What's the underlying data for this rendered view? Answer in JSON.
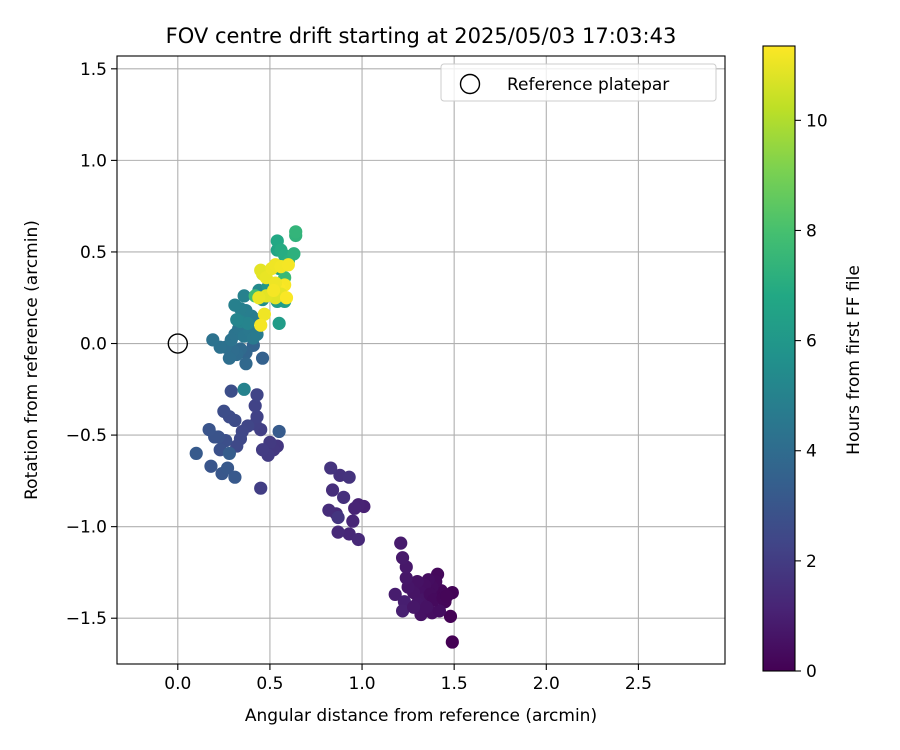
{
  "chart_data": {
    "type": "scatter",
    "title": "FOV centre drift starting at 2025/05/03 17:03:43",
    "xlabel": "Angular distance from reference (arcmin)",
    "ylabel": "Rotation from reference (arcmin)",
    "xlim": [
      -0.33,
      2.97
    ],
    "ylim": [
      -1.75,
      1.57
    ],
    "xticks": [
      0.0,
      0.5,
      1.0,
      1.5,
      2.0,
      2.5
    ],
    "xtick_labels": [
      "0.0",
      "0.5",
      "1.0",
      "1.5",
      "2.0",
      "2.5"
    ],
    "yticks": [
      -1.5,
      -1.0,
      -0.5,
      0.0,
      0.5,
      1.0,
      1.5
    ],
    "ytick_labels": [
      "−1.5",
      "−1.0",
      "−0.5",
      "0.0",
      "0.5",
      "1.0",
      "1.5"
    ],
    "grid": true,
    "legend": {
      "position": "upper right",
      "entries": [
        {
          "label": "Reference platepar",
          "marker": "open-circle",
          "x": 0.0,
          "y": 0.0
        }
      ]
    },
    "colorbar": {
      "label": "Hours from first FF file",
      "range": [
        0,
        11.35
      ],
      "ticks": [
        0,
        2,
        4,
        6,
        8,
        10
      ],
      "tick_labels": [
        "0",
        "2",
        "4",
        "6",
        "8",
        "10"
      ],
      "colormap": "viridis"
    },
    "points": [
      {
        "x": 1.49,
        "y": -1.63,
        "c": 0.0
      },
      {
        "x": 1.48,
        "y": -1.49,
        "c": 0.05
      },
      {
        "x": 1.49,
        "y": -1.36,
        "c": 0.1
      },
      {
        "x": 1.45,
        "y": -1.41,
        "c": 0.15
      },
      {
        "x": 1.43,
        "y": -1.35,
        "c": 0.2
      },
      {
        "x": 1.41,
        "y": -1.26,
        "c": 0.25
      },
      {
        "x": 1.4,
        "y": -1.3,
        "c": 0.3
      },
      {
        "x": 1.38,
        "y": -1.33,
        "c": 0.35
      },
      {
        "x": 1.36,
        "y": -1.29,
        "c": 0.4
      },
      {
        "x": 1.34,
        "y": -1.32,
        "c": 0.45
      },
      {
        "x": 1.32,
        "y": -1.36,
        "c": 0.5
      },
      {
        "x": 1.3,
        "y": -1.3,
        "c": 0.55
      },
      {
        "x": 1.28,
        "y": -1.36,
        "c": 0.6
      },
      {
        "x": 1.25,
        "y": -1.33,
        "c": 0.65
      },
      {
        "x": 1.24,
        "y": -1.28,
        "c": 0.7
      },
      {
        "x": 1.24,
        "y": -1.22,
        "c": 0.75
      },
      {
        "x": 1.22,
        "y": -1.17,
        "c": 0.8
      },
      {
        "x": 1.21,
        "y": -1.09,
        "c": 0.85
      },
      {
        "x": 1.18,
        "y": -1.37,
        "c": 0.9
      },
      {
        "x": 1.23,
        "y": -1.41,
        "c": 0.95
      },
      {
        "x": 1.22,
        "y": -1.46,
        "c": 1.0
      },
      {
        "x": 1.32,
        "y": -1.48,
        "c": 0.55
      },
      {
        "x": 1.35,
        "y": -1.41,
        "c": 0.5
      },
      {
        "x": 1.38,
        "y": -1.47,
        "c": 0.45
      },
      {
        "x": 1.42,
        "y": -1.46,
        "c": 0.4
      },
      {
        "x": 1.33,
        "y": -1.4,
        "c": 0.6
      },
      {
        "x": 1.3,
        "y": -1.42,
        "c": 0.65
      },
      {
        "x": 1.37,
        "y": -1.37,
        "c": 0.35
      },
      {
        "x": 1.39,
        "y": -1.4,
        "c": 0.3
      },
      {
        "x": 1.44,
        "y": -1.39,
        "c": 0.2
      },
      {
        "x": 1.46,
        "y": -1.38,
        "c": 0.15
      },
      {
        "x": 1.35,
        "y": -1.44,
        "c": 0.55
      },
      {
        "x": 1.28,
        "y": -1.44,
        "c": 0.7
      },
      {
        "x": 1.01,
        "y": -0.89,
        "c": 1.05
      },
      {
        "x": 0.98,
        "y": -0.88,
        "c": 1.1
      },
      {
        "x": 0.96,
        "y": -0.9,
        "c": 1.15
      },
      {
        "x": 0.95,
        "y": -0.97,
        "c": 1.2
      },
      {
        "x": 0.93,
        "y": -1.04,
        "c": 1.25
      },
      {
        "x": 0.98,
        "y": -1.07,
        "c": 1.3
      },
      {
        "x": 0.87,
        "y": -1.03,
        "c": 1.35
      },
      {
        "x": 0.86,
        "y": -0.93,
        "c": 1.4
      },
      {
        "x": 0.82,
        "y": -0.91,
        "c": 1.45
      },
      {
        "x": 0.84,
        "y": -0.8,
        "c": 1.5
      },
      {
        "x": 0.9,
        "y": -0.84,
        "c": 1.55
      },
      {
        "x": 0.88,
        "y": -0.72,
        "c": 1.6
      },
      {
        "x": 0.93,
        "y": -0.73,
        "c": 1.65
      },
      {
        "x": 0.83,
        "y": -0.68,
        "c": 1.7
      },
      {
        "x": 0.87,
        "y": -0.95,
        "c": 1.75
      },
      {
        "x": 0.54,
        "y": -0.56,
        "c": 1.8
      },
      {
        "x": 0.52,
        "y": -0.58,
        "c": 1.85
      },
      {
        "x": 0.5,
        "y": -0.54,
        "c": 1.9
      },
      {
        "x": 0.49,
        "y": -0.61,
        "c": 1.95
      },
      {
        "x": 0.46,
        "y": -0.58,
        "c": 2.0
      },
      {
        "x": 0.45,
        "y": -0.79,
        "c": 2.05
      },
      {
        "x": 0.45,
        "y": -0.47,
        "c": 2.1
      },
      {
        "x": 0.42,
        "y": -0.44,
        "c": 2.15
      },
      {
        "x": 0.43,
        "y": -0.4,
        "c": 2.2
      },
      {
        "x": 0.42,
        "y": -0.34,
        "c": 2.25
      },
      {
        "x": 0.43,
        "y": -0.28,
        "c": 2.3
      },
      {
        "x": 0.38,
        "y": -0.45,
        "c": 2.35
      },
      {
        "x": 0.35,
        "y": -0.48,
        "c": 2.4
      },
      {
        "x": 0.34,
        "y": -0.52,
        "c": 2.45
      },
      {
        "x": 0.32,
        "y": -0.56,
        "c": 2.5
      },
      {
        "x": 0.31,
        "y": -0.42,
        "c": 2.55
      },
      {
        "x": 0.28,
        "y": -0.4,
        "c": 2.6
      },
      {
        "x": 0.25,
        "y": -0.37,
        "c": 2.65
      },
      {
        "x": 0.29,
        "y": -0.26,
        "c": 2.7
      },
      {
        "x": 0.26,
        "y": -0.53,
        "c": 2.75
      },
      {
        "x": 0.23,
        "y": -0.58,
        "c": 2.8
      },
      {
        "x": 0.22,
        "y": -0.51,
        "c": 2.85
      },
      {
        "x": 0.2,
        "y": -0.51,
        "c": 2.9
      },
      {
        "x": 0.17,
        "y": -0.47,
        "c": 2.95
      },
      {
        "x": 0.18,
        "y": -0.67,
        "c": 3.0
      },
      {
        "x": 0.24,
        "y": -0.71,
        "c": 3.05
      },
      {
        "x": 0.27,
        "y": -0.68,
        "c": 3.1
      },
      {
        "x": 0.31,
        "y": -0.73,
        "c": 3.15
      },
      {
        "x": 0.1,
        "y": -0.6,
        "c": 3.2
      },
      {
        "x": 0.55,
        "y": -0.48,
        "c": 3.25
      },
      {
        "x": 0.28,
        "y": -0.6,
        "c": 3.3
      },
      {
        "x": 0.46,
        "y": -0.08,
        "c": 3.5
      },
      {
        "x": 0.41,
        "y": -0.01,
        "c": 3.6
      },
      {
        "x": 0.37,
        "y": -0.05,
        "c": 3.7
      },
      {
        "x": 0.37,
        "y": -0.11,
        "c": 3.8
      },
      {
        "x": 0.34,
        "y": -0.03,
        "c": 3.9
      },
      {
        "x": 0.32,
        "y": -0.06,
        "c": 4.0
      },
      {
        "x": 0.3,
        "y": -0.04,
        "c": 4.05
      },
      {
        "x": 0.28,
        "y": -0.08,
        "c": 4.1
      },
      {
        "x": 0.26,
        "y": -0.02,
        "c": 4.15
      },
      {
        "x": 0.23,
        "y": -0.02,
        "c": 4.2
      },
      {
        "x": 0.19,
        "y": 0.02,
        "c": 4.25
      },
      {
        "x": 0.29,
        "y": 0.02,
        "c": 4.3
      },
      {
        "x": 0.31,
        "y": 0.05,
        "c": 4.35
      },
      {
        "x": 0.33,
        "y": 0.08,
        "c": 4.4
      },
      {
        "x": 0.35,
        "y": 0.1,
        "c": 4.45
      },
      {
        "x": 0.36,
        "y": 0.04,
        "c": 4.5
      },
      {
        "x": 0.39,
        "y": 0.07,
        "c": 4.55
      },
      {
        "x": 0.41,
        "y": 0.03,
        "c": 4.6
      },
      {
        "x": 0.43,
        "y": 0.05,
        "c": 4.65
      },
      {
        "x": 0.44,
        "y": 0.13,
        "c": 4.7
      },
      {
        "x": 0.4,
        "y": 0.15,
        "c": 4.75
      },
      {
        "x": 0.37,
        "y": 0.18,
        "c": 4.8
      },
      {
        "x": 0.34,
        "y": 0.19,
        "c": 4.85
      },
      {
        "x": 0.31,
        "y": 0.21,
        "c": 4.9
      },
      {
        "x": 0.36,
        "y": 0.26,
        "c": 4.95
      },
      {
        "x": 0.36,
        "y": -0.25,
        "c": 5.0
      },
      {
        "x": 0.34,
        "y": 0.12,
        "c": 5.05
      },
      {
        "x": 0.38,
        "y": 0.11,
        "c": 5.1
      },
      {
        "x": 0.32,
        "y": 0.13,
        "c": 5.15
      },
      {
        "x": 0.44,
        "y": 0.29,
        "c": 5.3
      },
      {
        "x": 0.46,
        "y": 0.24,
        "c": 5.5
      },
      {
        "x": 0.5,
        "y": 0.27,
        "c": 5.7
      },
      {
        "x": 0.49,
        "y": 0.31,
        "c": 5.9
      },
      {
        "x": 0.54,
        "y": 0.23,
        "c": 6.1
      },
      {
        "x": 0.55,
        "y": 0.11,
        "c": 6.2
      },
      {
        "x": 0.58,
        "y": 0.23,
        "c": 6.3
      },
      {
        "x": 0.55,
        "y": 0.41,
        "c": 6.4
      },
      {
        "x": 0.54,
        "y": 0.51,
        "c": 6.6
      },
      {
        "x": 0.54,
        "y": 0.56,
        "c": 6.8
      },
      {
        "x": 0.56,
        "y": 0.51,
        "c": 6.9
      },
      {
        "x": 0.58,
        "y": 0.48,
        "c": 7.0
      },
      {
        "x": 0.6,
        "y": 0.45,
        "c": 7.1
      },
      {
        "x": 0.63,
        "y": 0.49,
        "c": 7.2
      },
      {
        "x": 0.64,
        "y": 0.59,
        "c": 7.3
      },
      {
        "x": 0.64,
        "y": 0.61,
        "c": 7.4
      },
      {
        "x": 0.58,
        "y": 0.36,
        "c": 7.6
      },
      {
        "x": 0.42,
        "y": 0.26,
        "c": 7.8
      },
      {
        "x": 0.46,
        "y": 0.38,
        "c": 10.8
      },
      {
        "x": 0.45,
        "y": 0.4,
        "c": 10.9
      },
      {
        "x": 0.48,
        "y": 0.36,
        "c": 11.0
      },
      {
        "x": 0.51,
        "y": 0.41,
        "c": 11.05
      },
      {
        "x": 0.53,
        "y": 0.43,
        "c": 11.1
      },
      {
        "x": 0.56,
        "y": 0.42,
        "c": 11.15
      },
      {
        "x": 0.6,
        "y": 0.43,
        "c": 11.2
      },
      {
        "x": 0.58,
        "y": 0.32,
        "c": 11.25
      },
      {
        "x": 0.55,
        "y": 0.3,
        "c": 11.3
      },
      {
        "x": 0.53,
        "y": 0.33,
        "c": 11.1
      },
      {
        "x": 0.56,
        "y": 0.27,
        "c": 10.95
      },
      {
        "x": 0.53,
        "y": 0.25,
        "c": 10.85
      },
      {
        "x": 0.48,
        "y": 0.26,
        "c": 10.9
      },
      {
        "x": 0.44,
        "y": 0.25,
        "c": 11.0
      },
      {
        "x": 0.47,
        "y": 0.16,
        "c": 11.1
      },
      {
        "x": 0.45,
        "y": 0.1,
        "c": 11.2
      },
      {
        "x": 0.59,
        "y": 0.25,
        "c": 11.3
      },
      {
        "x": 0.52,
        "y": 0.29,
        "c": 11.2
      }
    ]
  }
}
